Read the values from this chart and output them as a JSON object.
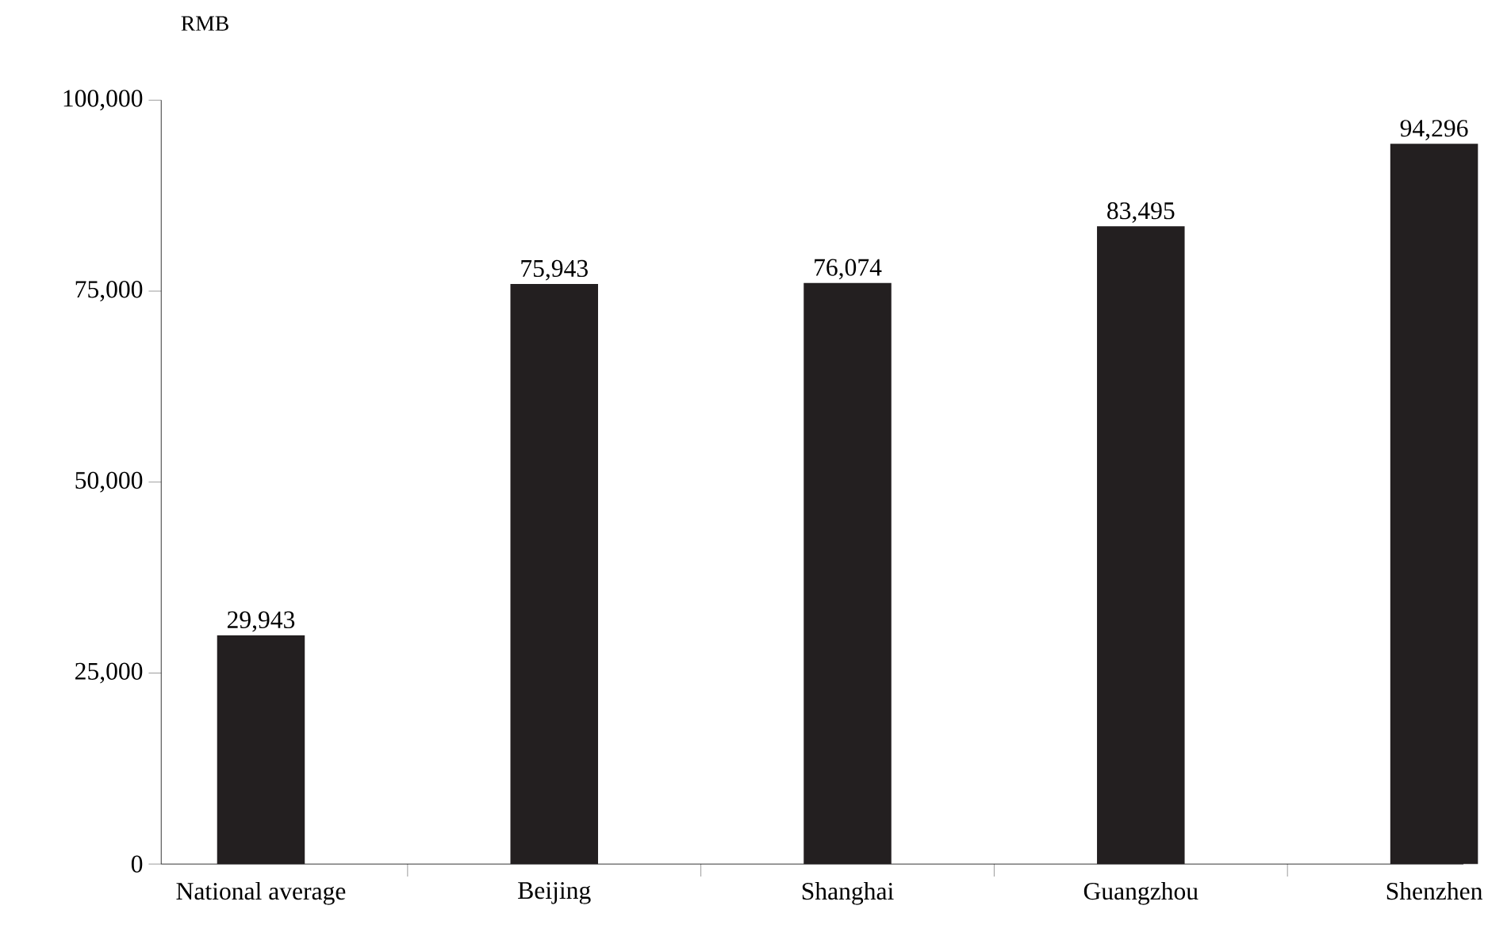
{
  "chart_data": {
    "type": "bar",
    "ylabel": "RMB",
    "categories": [
      "National average",
      "Beijing",
      "Shanghai",
      "Guangzhou",
      "Shenzhen"
    ],
    "values": [
      29943,
      75943,
      76074,
      83495,
      94296
    ],
    "value_labels": [
      "29,943",
      "75,943",
      "76,074",
      "83,495",
      "94,296"
    ],
    "color": "#231f20",
    "ylim": [
      0,
      100000
    ],
    "yticks": [
      {
        "value": 0,
        "label": "0"
      },
      {
        "value": 25000,
        "label": "25,000"
      },
      {
        "value": 50000,
        "label": "50,000"
      },
      {
        "value": 75000,
        "label": "75,000"
      },
      {
        "value": 100000,
        "label": "100,000"
      }
    ],
    "grid": false
  }
}
